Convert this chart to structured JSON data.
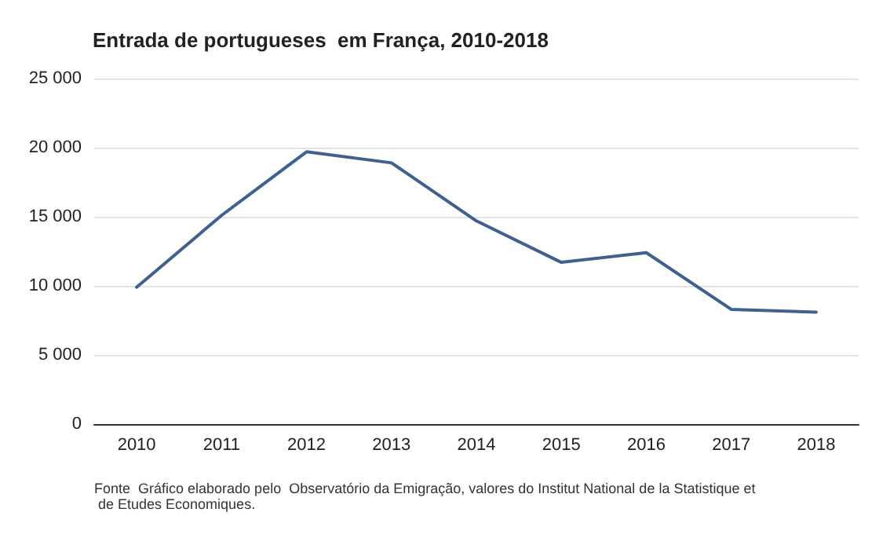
{
  "chart_data": {
    "type": "line",
    "title": "Entrada de portugueses  em França, 2010-2018",
    "categories": [
      "2010",
      "2011",
      "2012",
      "2013",
      "2014",
      "2015",
      "2016",
      "2017",
      "2018"
    ],
    "series": [
      {
        "color": "#3f6190",
        "values": [
          9900,
          15100,
          19700,
          18900,
          14700,
          11700,
          12400,
          8300,
          8100
        ]
      }
    ],
    "ylim": [
      0,
      25000
    ],
    "yticks": [
      {
        "value": 0,
        "label": "0"
      },
      {
        "value": 5000,
        "label": "5 000"
      },
      {
        "value": 10000,
        "label": "10 000"
      },
      {
        "value": 15000,
        "label": "15 000"
      },
      {
        "value": 20000,
        "label": "20 000"
      },
      {
        "value": 25000,
        "label": "25 000"
      }
    ],
    "grid": "y",
    "marker": "none",
    "line_style": "solid",
    "annotations": [
      "Fonte  Gráfico elaborado pelo  Observatório da Emigração, valores do Institut National de la Statistique et de Etudes Economiques."
    ]
  }
}
